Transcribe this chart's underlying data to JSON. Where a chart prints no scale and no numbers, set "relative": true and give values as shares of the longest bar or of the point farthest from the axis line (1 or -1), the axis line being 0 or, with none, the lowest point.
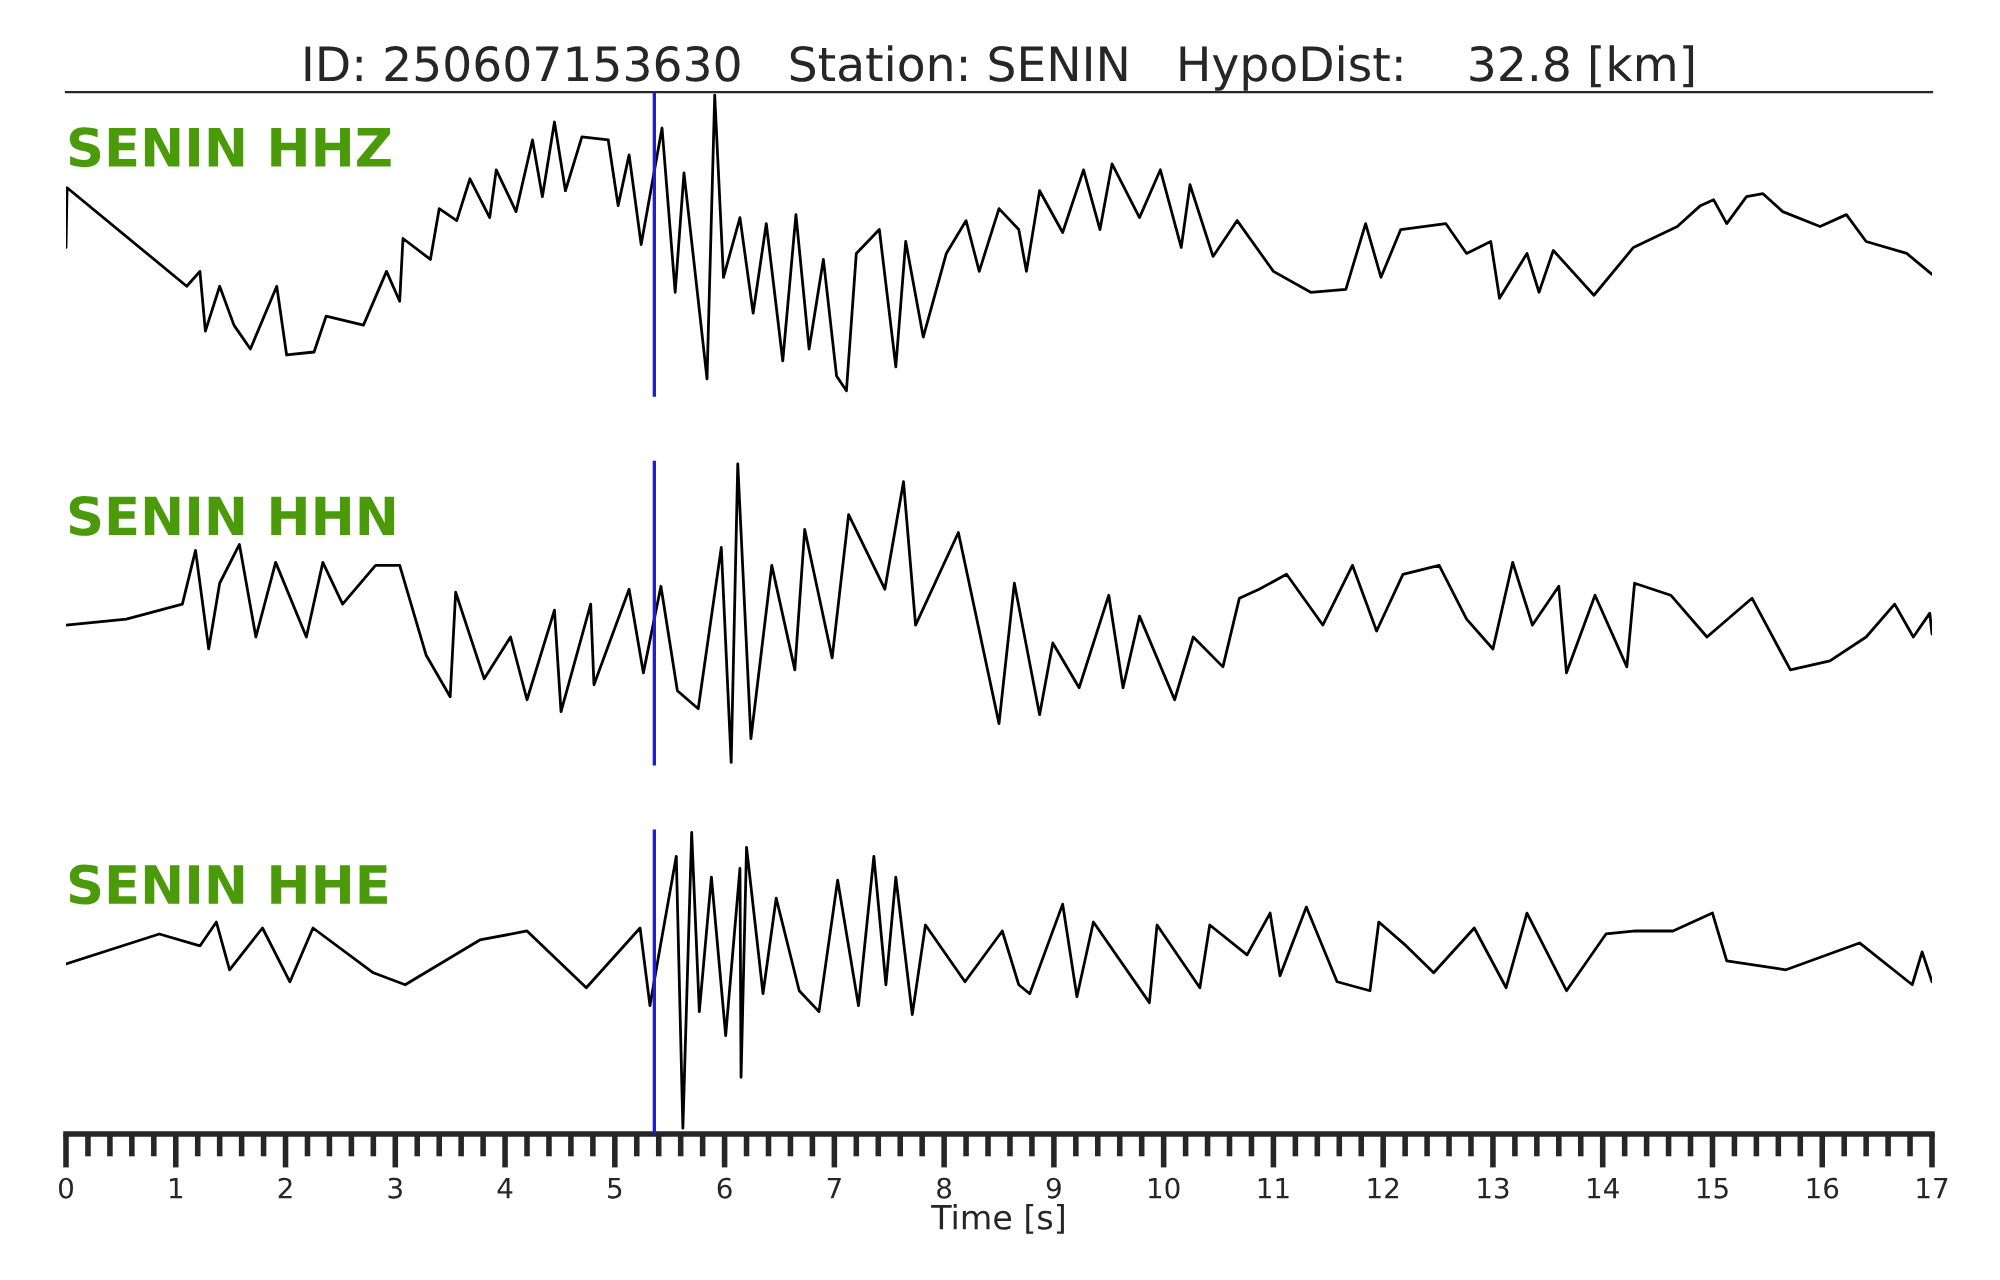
{
  "chart_data": [
    {
      "type": "line",
      "title": "ID: 250607153630   Station: SENIN   HypoDist:    32.8 [km]",
      "relative": true,
      "xlim": [
        0,
        17
      ],
      "tick_labels": false,
      "annotations": [
        "SENIN HHZ"
      ],
      "ref_lines": [
        {
          "axis": "x",
          "value": 5.36,
          "color": "#1f1fd0"
        }
      ],
      "series": [
        {
          "color": "#000000",
          "x": [
            0,
            0.01,
            1.1,
            1.22,
            1.27,
            1.4,
            1.53,
            1.68,
            1.92,
            2.01,
            2.26,
            2.37,
            2.71,
            2.92,
            3.04,
            3.07,
            3.32,
            3.4,
            3.56,
            3.68,
            3.86,
            3.92,
            4.1,
            4.25,
            4.34,
            4.45,
            4.55,
            4.7,
            4.94,
            5.03,
            5.13,
            5.24,
            5.43,
            5.55,
            5.63,
            5.84,
            5.91,
            5.99,
            6.14,
            6.26,
            6.38,
            6.53,
            6.65,
            6.77,
            6.9,
            7.02,
            7.11,
            7.2,
            7.41,
            7.56,
            7.65,
            7.81,
            8.02,
            8.2,
            8.32,
            8.5,
            8.68,
            8.75,
            8.87,
            9.08,
            9.27,
            9.42,
            9.53,
            9.78,
            9.97,
            10.16,
            10.24,
            10.45,
            10.67,
            11.0,
            11.34,
            11.66,
            11.84,
            11.98,
            12.16,
            12.57,
            12.76,
            12.98,
            13.06,
            13.31,
            13.42,
            13.55,
            13.92,
            14.28,
            14.68,
            14.89,
            15.01,
            15.13,
            15.31,
            15.46,
            15.64,
            15.98,
            16.22,
            16.4,
            16.77,
            17.0
          ],
          "values": [
            0.49,
            0.69,
            0.36,
            0.41,
            0.21,
            0.36,
            0.23,
            0.15,
            0.36,
            0.13,
            0.14,
            0.26,
            0.23,
            0.41,
            0.31,
            0.52,
            0.45,
            0.62,
            0.58,
            0.72,
            0.59,
            0.75,
            0.61,
            0.85,
            0.66,
            0.91,
            0.68,
            0.86,
            0.85,
            0.63,
            0.8,
            0.5,
            0.89,
            0.34,
            0.74,
            0.05,
            1.0,
            0.39,
            0.59,
            0.27,
            0.57,
            0.11,
            0.6,
            0.15,
            0.45,
            0.06,
            0.01,
            0.47,
            0.55,
            0.09,
            0.51,
            0.19,
            0.47,
            0.58,
            0.41,
            0.62,
            0.55,
            0.41,
            0.68,
            0.54,
            0.75,
            0.55,
            0.77,
            0.59,
            0.75,
            0.49,
            0.7,
            0.46,
            0.58,
            0.41,
            0.34,
            0.35,
            0.57,
            0.39,
            0.55,
            0.57,
            0.47,
            0.51,
            0.32,
            0.47,
            0.34,
            0.48,
            0.33,
            0.49,
            0.56,
            0.63,
            0.65,
            0.57,
            0.66,
            0.67,
            0.61,
            0.56,
            0.6,
            0.51,
            0.47,
            0.4
          ]
        }
      ]
    },
    {
      "type": "line",
      "relative": true,
      "xlim": [
        0,
        17
      ],
      "tick_labels": false,
      "annotations": [
        "SENIN HHN"
      ],
      "ref_lines": [
        {
          "axis": "x",
          "value": 5.36,
          "color": "#1f1fd0"
        }
      ],
      "series": [
        {
          "color": "#000000",
          "x": [
            0,
            0.55,
            1.06,
            1.18,
            1.3,
            1.4,
            1.58,
            1.73,
            1.91,
            2.19,
            2.34,
            2.52,
            2.82,
            3.04,
            3.28,
            3.5,
            3.55,
            3.81,
            4.05,
            4.2,
            4.45,
            4.51,
            4.78,
            4.81,
            5.13,
            5.26,
            5.42,
            5.57,
            5.76,
            5.97,
            6.06,
            6.12,
            6.24,
            6.43,
            6.64,
            6.73,
            6.98,
            7.13,
            7.46,
            7.63,
            7.74,
            8.13,
            8.5,
            8.64,
            8.87,
            8.99,
            9.23,
            9.5,
            9.63,
            9.78,
            10.1,
            10.27,
            10.54,
            10.69,
            10.87,
            11.12,
            11.45,
            11.72,
            11.94,
            12.18,
            12.51,
            12.76,
            13.0,
            13.18,
            13.36,
            13.6,
            13.67,
            13.93,
            14.22,
            14.29,
            14.62,
            14.95,
            15.36,
            15.71,
            16.07,
            16.4,
            16.66,
            16.83,
            16.98,
            17.0
          ],
          "values": [
            0.46,
            0.48,
            0.53,
            0.71,
            0.38,
            0.6,
            0.73,
            0.42,
            0.67,
            0.42,
            0.67,
            0.53,
            0.66,
            0.66,
            0.36,
            0.22,
            0.57,
            0.28,
            0.42,
            0.21,
            0.51,
            0.17,
            0.53,
            0.26,
            0.58,
            0.3,
            0.59,
            0.24,
            0.18,
            0.72,
            0.0,
            1.0,
            0.08,
            0.66,
            0.31,
            0.78,
            0.35,
            0.83,
            0.58,
            0.94,
            0.46,
            0.77,
            0.13,
            0.6,
            0.16,
            0.4,
            0.25,
            0.56,
            0.25,
            0.49,
            0.21,
            0.42,
            0.32,
            0.55,
            0.58,
            0.63,
            0.46,
            0.66,
            0.44,
            0.63,
            0.66,
            0.48,
            0.38,
            0.67,
            0.46,
            0.59,
            0.3,
            0.56,
            0.32,
            0.6,
            0.56,
            0.42,
            0.55,
            0.31,
            0.34,
            0.42,
            0.53,
            0.42,
            0.5,
            0.43
          ]
        }
      ]
    },
    {
      "type": "line",
      "relative": true,
      "xlim": [
        0,
        17
      ],
      "tick_labels": "x",
      "xlabel": "Time [s]",
      "annotations": [
        "SENIN HHE"
      ],
      "ref_lines": [
        {
          "axis": "x",
          "value": 5.36,
          "color": "#1f1fd0"
        }
      ],
      "xticks": [
        0,
        {
          "value": 0.2,
          "label": null
        },
        {
          "value": 0.4,
          "label": null
        },
        {
          "value": 0.6,
          "label": null
        },
        {
          "value": 0.8,
          "label": null
        },
        1,
        {
          "value": 1.2,
          "label": null
        },
        {
          "value": 1.4,
          "label": null
        },
        {
          "value": 1.6,
          "label": null
        },
        {
          "value": 1.8,
          "label": null
        },
        2,
        {
          "value": 2.2,
          "label": null
        },
        {
          "value": 2.4,
          "label": null
        },
        {
          "value": 2.6,
          "label": null
        },
        {
          "value": 2.8,
          "label": null
        },
        3,
        {
          "value": 3.2,
          "label": null
        },
        {
          "value": 3.4,
          "label": null
        },
        {
          "value": 3.6,
          "label": null
        },
        {
          "value": 3.8,
          "label": null
        },
        4,
        {
          "value": 4.2,
          "label": null
        },
        {
          "value": 4.4,
          "label": null
        },
        {
          "value": 4.6,
          "label": null
        },
        {
          "value": 4.8,
          "label": null
        },
        5,
        {
          "value": 5.2,
          "label": null
        },
        {
          "value": 5.4,
          "label": null
        },
        {
          "value": 5.6,
          "label": null
        },
        {
          "value": 5.8,
          "label": null
        },
        6,
        {
          "value": 6.2,
          "label": null
        },
        {
          "value": 6.4,
          "label": null
        },
        {
          "value": 6.6,
          "label": null
        },
        {
          "value": 6.8,
          "label": null
        },
        7,
        {
          "value": 7.2,
          "label": null
        },
        {
          "value": 7.4,
          "label": null
        },
        {
          "value": 7.6,
          "label": null
        },
        {
          "value": 7.8,
          "label": null
        },
        8,
        {
          "value": 8.2,
          "label": null
        },
        {
          "value": 8.4,
          "label": null
        },
        {
          "value": 8.6,
          "label": null
        },
        {
          "value": 8.8,
          "label": null
        },
        9,
        {
          "value": 9.2,
          "label": null
        },
        {
          "value": 9.4,
          "label": null
        },
        {
          "value": 9.6,
          "label": null
        },
        {
          "value": 9.8,
          "label": null
        },
        10,
        {
          "value": 10.2,
          "label": null
        },
        {
          "value": 10.4,
          "label": null
        },
        {
          "value": 10.6,
          "label": null
        },
        {
          "value": 10.8,
          "label": null
        },
        11,
        {
          "value": 11.2,
          "label": null
        },
        {
          "value": 11.4,
          "label": null
        },
        {
          "value": 11.6,
          "label": null
        },
        {
          "value": 11.8,
          "label": null
        },
        12,
        {
          "value": 12.2,
          "label": null
        },
        {
          "value": 12.4,
          "label": null
        },
        {
          "value": 12.6,
          "label": null
        },
        {
          "value": 12.8,
          "label": null
        },
        13,
        {
          "value": 13.2,
          "label": null
        },
        {
          "value": 13.4,
          "label": null
        },
        {
          "value": 13.6,
          "label": null
        },
        {
          "value": 13.8,
          "label": null
        },
        14,
        {
          "value": 14.2,
          "label": null
        },
        {
          "value": 14.4,
          "label": null
        },
        {
          "value": 14.6,
          "label": null
        },
        {
          "value": 14.8,
          "label": null
        },
        15,
        {
          "value": 15.2,
          "label": null
        },
        {
          "value": 15.4,
          "label": null
        },
        {
          "value": 15.6,
          "label": null
        },
        {
          "value": 15.8,
          "label": null
        },
        16,
        {
          "value": 16.2,
          "label": null
        },
        {
          "value": 16.4,
          "label": null
        },
        {
          "value": 16.6,
          "label": null
        },
        {
          "value": 16.8,
          "label": null
        },
        17
      ],
      "series": [
        {
          "color": "#000000",
          "x": [
            0,
            0.85,
            1.22,
            1.37,
            1.49,
            1.79,
            2.04,
            2.25,
            2.8,
            3.09,
            3.77,
            4.2,
            4.74,
            5.23,
            5.32,
            5.41,
            5.56,
            5.62,
            5.7,
            5.77,
            5.88,
            6.01,
            6.14,
            6.15,
            6.2,
            6.35,
            6.47,
            6.68,
            6.86,
            7.03,
            7.22,
            7.36,
            7.47,
            7.56,
            7.71,
            7.83,
            8.19,
            8.53,
            8.68,
            8.78,
            9.08,
            9.21,
            9.36,
            9.87,
            9.94,
            10.33,
            10.42,
            10.76,
            10.97,
            11.06,
            11.3,
            11.58,
            11.88,
            11.96,
            12.21,
            12.46,
            12.83,
            13.12,
            13.31,
            13.67,
            14.03,
            14.3,
            14.64,
            15.0,
            15.13,
            15.67,
            16.34,
            16.82,
            16.91,
            17.0
          ],
          "values": [
            0.56,
            0.66,
            0.62,
            0.7,
            0.54,
            0.68,
            0.5,
            0.68,
            0.53,
            0.49,
            0.64,
            0.67,
            0.48,
            0.68,
            0.42,
            0.61,
            0.92,
            0.01,
            1.0,
            0.4,
            0.85,
            0.32,
            0.88,
            0.18,
            0.95,
            0.46,
            0.78,
            0.47,
            0.4,
            0.84,
            0.42,
            0.92,
            0.49,
            0.85,
            0.39,
            0.69,
            0.5,
            0.67,
            0.49,
            0.46,
            0.76,
            0.45,
            0.7,
            0.43,
            0.69,
            0.48,
            0.69,
            0.59,
            0.73,
            0.52,
            0.75,
            0.5,
            0.47,
            0.7,
            0.62,
            0.53,
            0.68,
            0.48,
            0.73,
            0.47,
            0.66,
            0.67,
            0.67,
            0.73,
            0.57,
            0.54,
            0.63,
            0.49,
            0.6,
            0.5
          ]
        }
      ]
    }
  ]
}
